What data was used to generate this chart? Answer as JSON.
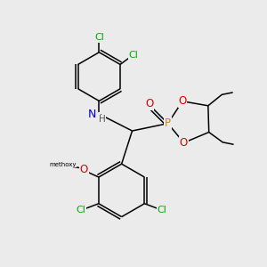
{
  "bg_color": "#ebebeb",
  "atom_colors": {
    "C": "#000000",
    "Cl": "#00aa00",
    "N": "#0000cc",
    "H": "#555555",
    "O": "#dd0000",
    "P": "#cc8800"
  },
  "bond_color": "#000000",
  "figsize": [
    3.0,
    3.0
  ],
  "dpi": 100
}
